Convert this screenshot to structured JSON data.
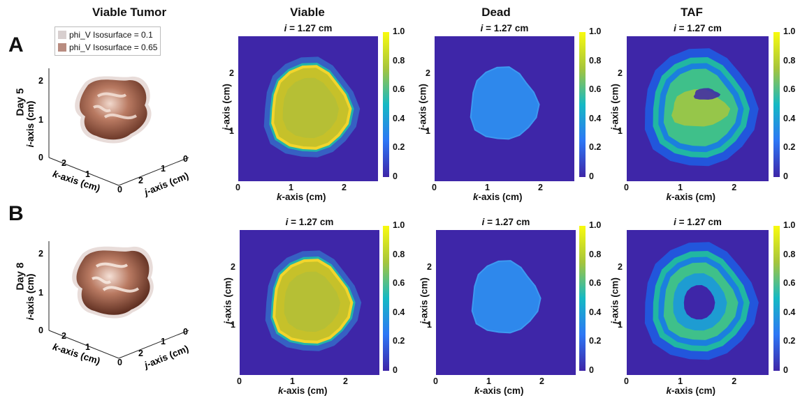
{
  "columns": {
    "viable_tumor": "Viable Tumor",
    "viable": "Viable",
    "dead": "Dead",
    "taf": "TAF"
  },
  "legend": {
    "entry1": "phi_V Isosurface = 0.1",
    "entry2": "phi_V Isosurface = 0.65",
    "color1": "#d8cfcf",
    "color2": "#b88c80"
  },
  "rows": [
    {
      "letter": "A",
      "day": "Day 5"
    },
    {
      "letter": "B",
      "day": "Day 8"
    }
  ],
  "slice_title": "i = 1.27 cm",
  "slice_title_var": "i",
  "slice_title_value": " = 1.27 cm",
  "axes2d": {
    "x_label_var": "k",
    "x_label_rest": "-axis (cm)",
    "y_label_var": "j",
    "y_label_rest": "-axis (cm)",
    "x_ticks": [
      "0",
      "1",
      "2"
    ],
    "y_ticks": [
      "1",
      "2"
    ]
  },
  "colorbar_ticks": [
    "1.0",
    "0.8",
    "0.6",
    "0.4",
    "0.2",
    "0"
  ],
  "axes3d": {
    "i_label_var": "i",
    "i_label_rest": "-axis (cm)",
    "k_label_var": "k",
    "k_label_rest": "-axis (cm)",
    "j_label_var": "j",
    "j_label_rest": "-axis (cm)",
    "i_ticks": [
      "0",
      "1",
      "2"
    ],
    "k_ticks": [
      "2",
      "1",
      "0"
    ],
    "j_ticks": [
      "0",
      "1",
      "2"
    ]
  },
  "colors": {
    "background": "#3e26a8",
    "tumor_dark": "#6e3a2a",
    "tumor_light": "#e8c9bb"
  }
}
